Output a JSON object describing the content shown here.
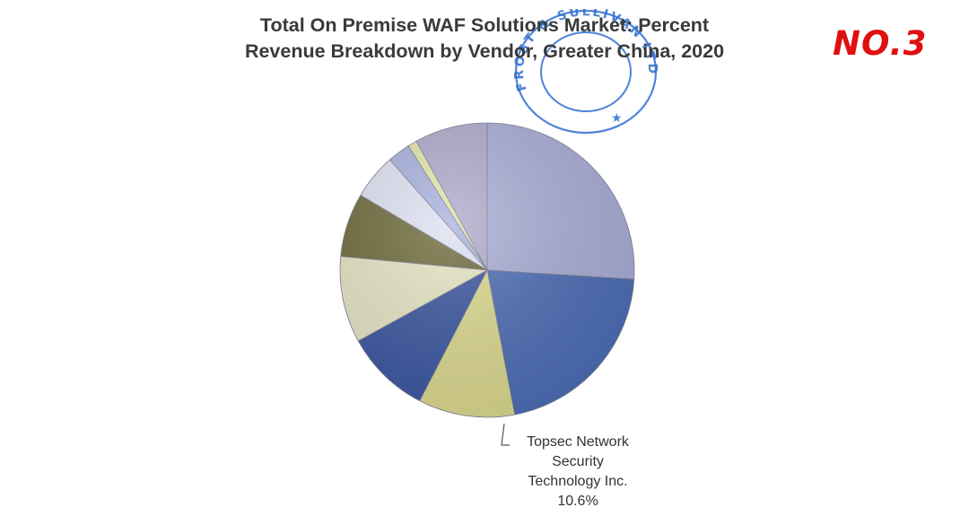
{
  "header": {
    "title_line1": "Total On Premise WAF Solutions Market: Percent",
    "title_line2": "Revenue Breakdown by Vendor, Greater China, 2020",
    "rank_label": "NO.3"
  },
  "seal": {
    "text": "FROST & SULLIVAN LTD",
    "color": "#2f6fd0"
  },
  "chart_data": {
    "type": "pie",
    "title": "Total On Premise WAF Solutions Market: Percent Revenue Breakdown by Vendor, Greater China, 2020",
    "slices": [
      {
        "value": 26.0,
        "color": "#aaaed6"
      },
      {
        "value": 21.0,
        "color": "#4c6db5"
      },
      {
        "value": 10.6,
        "color": "#dcd98f",
        "label": "Topsec Network Security Technology Inc.",
        "value_label": "10.6%"
      },
      {
        "value": 9.4,
        "color": "#3a56a0"
      },
      {
        "value": 9.5,
        "color": "#e6e5c4"
      },
      {
        "value": 7.0,
        "color": "#6d6a3a"
      },
      {
        "value": 5.0,
        "color": "#dfe2f2"
      },
      {
        "value": 2.5,
        "color": "#a9b2df"
      },
      {
        "value": 1.0,
        "color": "#e4e7a8"
      },
      {
        "value": 8.0,
        "color": "#b0abcc"
      }
    ],
    "start_angle_deg": 0,
    "legend": "none"
  },
  "callout": {
    "name_lines": [
      "Topsec Network",
      "Security",
      "Technology Inc."
    ],
    "value": "10.6%"
  }
}
